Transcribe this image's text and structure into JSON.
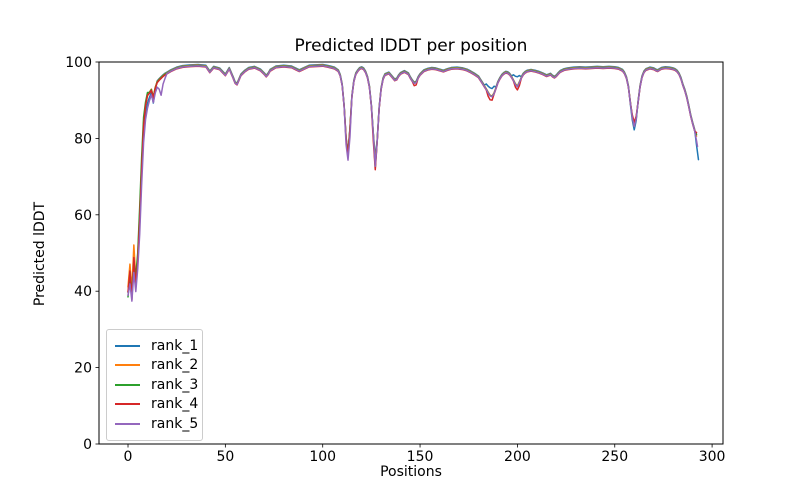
{
  "figure": {
    "title": "Predicted lDDT per position",
    "xlabel": "Positions",
    "ylabel": "Predicted lDDT"
  },
  "chart_data": {
    "type": "line",
    "title": "Predicted lDDT per position",
    "xlabel": "Positions",
    "ylabel": "Predicted lDDT",
    "xlim": [
      -14.9,
      305.6
    ],
    "ylim": [
      0,
      100
    ],
    "x_ticks": [
      0,
      50,
      100,
      150,
      200,
      250,
      300
    ],
    "y_ticks": [
      0,
      20,
      40,
      60,
      80,
      100
    ],
    "grid": false,
    "legend_position": "lower left",
    "line_width": 1.5,
    "axis_color": "#000000",
    "base_keypoints": [
      [
        0,
        39.5
      ],
      [
        1,
        44
      ],
      [
        2,
        38.5
      ],
      [
        3,
        47
      ],
      [
        4,
        41.5
      ],
      [
        5,
        48
      ],
      [
        6,
        58
      ],
      [
        7,
        72
      ],
      [
        8,
        83
      ],
      [
        9,
        88
      ],
      [
        10,
        90.5
      ],
      [
        11,
        92
      ],
      [
        12,
        92.8
      ],
      [
        13,
        90.8
      ],
      [
        14,
        93.3
      ],
      [
        15,
        94.8
      ],
      [
        16,
        95.4
      ],
      [
        17,
        95.9
      ],
      [
        18,
        96.4
      ],
      [
        19,
        96.8
      ],
      [
        20,
        97.1
      ],
      [
        22,
        97.7
      ],
      [
        25,
        98.4
      ],
      [
        28,
        98.8
      ],
      [
        32,
        99
      ],
      [
        36,
        99.1
      ],
      [
        40,
        98.9
      ],
      [
        42,
        97.4
      ],
      [
        44,
        98.6
      ],
      [
        47,
        98.2
      ],
      [
        50,
        96.6
      ],
      [
        52,
        98.3
      ],
      [
        54,
        95.9
      ],
      [
        55,
        94.6
      ],
      [
        56,
        94.2
      ],
      [
        57,
        95.4
      ],
      [
        58,
        96.6
      ],
      [
        60,
        97.6
      ],
      [
        62,
        98.3
      ],
      [
        65,
        98.6
      ],
      [
        68,
        97.9
      ],
      [
        70,
        96.9
      ],
      [
        71,
        96.3
      ],
      [
        72,
        96.9
      ],
      [
        73,
        97.8
      ],
      [
        76,
        98.7
      ],
      [
        80,
        98.9
      ],
      [
        84,
        98.7
      ],
      [
        86,
        98.2
      ],
      [
        88,
        97.7
      ],
      [
        90,
        98.2
      ],
      [
        93,
        98.9
      ],
      [
        96,
        99
      ],
      [
        100,
        99.1
      ],
      [
        103,
        98.8
      ],
      [
        106,
        98.4
      ],
      [
        108,
        97.7
      ],
      [
        109,
        96.5
      ],
      [
        110,
        94
      ],
      [
        111,
        88.5
      ],
      [
        112,
        80
      ],
      [
        113,
        75.8
      ],
      [
        114,
        82.5
      ],
      [
        115,
        91
      ],
      [
        116,
        95
      ],
      [
        117,
        96.9
      ],
      [
        118,
        97.7
      ],
      [
        119,
        98.3
      ],
      [
        120,
        98.5
      ],
      [
        121,
        98.2
      ],
      [
        122,
        97.4
      ],
      [
        123,
        96
      ],
      [
        124,
        93.5
      ],
      [
        125,
        88.5
      ],
      [
        126,
        81
      ],
      [
        127,
        73.2
      ],
      [
        128,
        79.5
      ],
      [
        129,
        88
      ],
      [
        130,
        93
      ],
      [
        131,
        95.6
      ],
      [
        132,
        96.7
      ],
      [
        134,
        97.1
      ],
      [
        136,
        95.9
      ],
      [
        137,
        95.3
      ],
      [
        138,
        95.5
      ],
      [
        139,
        96.4
      ],
      [
        140,
        97
      ],
      [
        142,
        97.5
      ],
      [
        144,
        96.9
      ],
      [
        145,
        95.9
      ],
      [
        146,
        95.1
      ],
      [
        147,
        94.5
      ],
      [
        148,
        94.7
      ],
      [
        149,
        95.9
      ],
      [
        150,
        96.7
      ],
      [
        152,
        97.7
      ],
      [
        154,
        98.1
      ],
      [
        156,
        98.3
      ],
      [
        158,
        98.2
      ],
      [
        160,
        97.9
      ],
      [
        162,
        97.6
      ],
      [
        164,
        98
      ],
      [
        166,
        98.3
      ],
      [
        169,
        98.4
      ],
      [
        172,
        98.2
      ],
      [
        174,
        97.9
      ],
      [
        176,
        97.4
      ],
      [
        178,
        96.8
      ],
      [
        180,
        96.1
      ],
      [
        181,
        95.3
      ],
      [
        182,
        94.5
      ],
      [
        183,
        93.7
      ],
      [
        184,
        92.9
      ],
      [
        185,
        92
      ],
      [
        186,
        91.2
      ],
      [
        187,
        91
      ],
      [
        188,
        91.8
      ],
      [
        189,
        93.2
      ],
      [
        190,
        94.7
      ],
      [
        191,
        95.7
      ],
      [
        192,
        96.5
      ],
      [
        193,
        97
      ],
      [
        194,
        97.3
      ],
      [
        195,
        97.2
      ],
      [
        196,
        96.8
      ],
      [
        197,
        96.1
      ],
      [
        198,
        95.2
      ],
      [
        199,
        94.2
      ],
      [
        200,
        93.6
      ],
      [
        201,
        94.7
      ],
      [
        202,
        95.9
      ],
      [
        203,
        96.8
      ],
      [
        204,
        97.3
      ],
      [
        205,
        97.6
      ],
      [
        207,
        97.8
      ],
      [
        209,
        97.6
      ],
      [
        211,
        97.3
      ],
      [
        213,
        96.9
      ],
      [
        215,
        96.4
      ],
      [
        216,
        96.6
      ],
      [
        217,
        96.8
      ],
      [
        218,
        96.3
      ],
      [
        219,
        96
      ],
      [
        220,
        96.4
      ],
      [
        221,
        97
      ],
      [
        222,
        97.5
      ],
      [
        224,
        98
      ],
      [
        226,
        98.2
      ],
      [
        229,
        98.4
      ],
      [
        232,
        98.5
      ],
      [
        235,
        98.4
      ],
      [
        238,
        98.5
      ],
      [
        241,
        98.6
      ],
      [
        244,
        98.5
      ],
      [
        247,
        98.6
      ],
      [
        250,
        98.5
      ],
      [
        252,
        98.3
      ],
      [
        254,
        97.8
      ],
      [
        255,
        97.1
      ],
      [
        256,
        95.9
      ],
      [
        257,
        93.6
      ],
      [
        258,
        89.6
      ],
      [
        259,
        85.6
      ],
      [
        260,
        83.2
      ],
      [
        261,
        85.2
      ],
      [
        262,
        89.6
      ],
      [
        263,
        93.6
      ],
      [
        264,
        96.1
      ],
      [
        265,
        97.4
      ],
      [
        266,
        98
      ],
      [
        268,
        98.4
      ],
      [
        270,
        98.2
      ],
      [
        271,
        97.9
      ],
      [
        272,
        97.7
      ],
      [
        273,
        98
      ],
      [
        274,
        98.3
      ],
      [
        276,
        98.5
      ],
      [
        278,
        98.4
      ],
      [
        280,
        98.2
      ],
      [
        281,
        98
      ],
      [
        282,
        97.6
      ],
      [
        283,
        96.9
      ],
      [
        284,
        95.7
      ],
      [
        285,
        94
      ],
      [
        286,
        92.6
      ],
      [
        287,
        90.8
      ],
      [
        288,
        88.5
      ],
      [
        289,
        86
      ],
      [
        290,
        84
      ],
      [
        291,
        82.2
      ]
    ],
    "series": [
      {
        "name": "rank_1",
        "color": "#1f77b4",
        "y_offset": 0.25,
        "overrides": [
          [
            0,
            39.5
          ],
          [
            1,
            43
          ],
          [
            2,
            38.5
          ],
          [
            3,
            46
          ],
          [
            4,
            41
          ],
          [
            5,
            47
          ],
          [
            6,
            57
          ],
          [
            7,
            70
          ],
          [
            8,
            81
          ],
          [
            9,
            86.5
          ],
          [
            10,
            89
          ],
          [
            11,
            90.5
          ],
          [
            12,
            91.8
          ],
          [
            13,
            89
          ],
          [
            14,
            92.5
          ],
          [
            113,
            76.2
          ],
          [
            127,
            74.8
          ],
          [
            184,
            94
          ],
          [
            185,
            93.4
          ],
          [
            186,
            93
          ],
          [
            187,
            92.8
          ],
          [
            188,
            93.4
          ],
          [
            198,
            96.4
          ],
          [
            199,
            96
          ],
          [
            200,
            95.9
          ],
          [
            201,
            96.2
          ],
          [
            258,
            88.8
          ],
          [
            259,
            84.6
          ],
          [
            260,
            82
          ],
          [
            261,
            84.4
          ],
          [
            292,
            78
          ],
          [
            293,
            74.2
          ]
        ]
      },
      {
        "name": "rank_2",
        "color": "#ff7f0e",
        "y_offset": 0.1,
        "overrides": [
          [
            0,
            41
          ],
          [
            1,
            47
          ],
          [
            2,
            40
          ],
          [
            3,
            52
          ],
          [
            4,
            43
          ],
          [
            5,
            49
          ],
          [
            6,
            60
          ],
          [
            7,
            73
          ],
          [
            8,
            84
          ],
          [
            9,
            88.5
          ],
          [
            10,
            91
          ],
          [
            127,
            73.6
          ],
          [
            292,
            80.5
          ]
        ]
      },
      {
        "name": "rank_3",
        "color": "#2ca02c",
        "y_offset": 0,
        "overrides": [
          [
            0,
            38.5
          ],
          [
            1,
            45
          ],
          [
            2,
            39.5
          ],
          [
            3,
            48
          ],
          [
            4,
            44
          ],
          [
            5,
            50
          ],
          [
            6,
            62
          ],
          [
            7,
            75
          ],
          [
            8,
            85.5
          ],
          [
            9,
            89.5
          ],
          [
            10,
            92
          ],
          [
            127,
            72.3
          ],
          [
            292,
            81
          ]
        ]
      },
      {
        "name": "rank_4",
        "color": "#d62728",
        "y_offset": -0.2,
        "overrides": [
          [
            0,
            40
          ],
          [
            1,
            45.5
          ],
          [
            2,
            38
          ],
          [
            3,
            49
          ],
          [
            4,
            42
          ],
          [
            5,
            48
          ],
          [
            6,
            59
          ],
          [
            7,
            72
          ],
          [
            8,
            83.5
          ],
          [
            9,
            88.8
          ],
          [
            10,
            91.5
          ],
          [
            113,
            75.5
          ],
          [
            126,
            79.5
          ],
          [
            127,
            72
          ],
          [
            147,
            94
          ],
          [
            148,
            94.2
          ],
          [
            185,
            91.2
          ],
          [
            186,
            90.3
          ],
          [
            187,
            90.2
          ],
          [
            199,
            93.6
          ],
          [
            200,
            92.9
          ],
          [
            201,
            94
          ],
          [
            259,
            86.4
          ],
          [
            260,
            84.4
          ],
          [
            261,
            86
          ],
          [
            292,
            81.7
          ]
        ]
      },
      {
        "name": "rank_5",
        "color": "#9467bd",
        "y_offset": -0.1,
        "overrides": [
          [
            0,
            39
          ],
          [
            1,
            42
          ],
          [
            2,
            37.5
          ],
          [
            3,
            45
          ],
          [
            4,
            40
          ],
          [
            5,
            46
          ],
          [
            6,
            55
          ],
          [
            7,
            68
          ],
          [
            8,
            79
          ],
          [
            9,
            85
          ],
          [
            10,
            88
          ],
          [
            11,
            90
          ],
          [
            12,
            91.5
          ],
          [
            13,
            89.5
          ],
          [
            14,
            92
          ],
          [
            15,
            93.5
          ],
          [
            16,
            93
          ],
          [
            17,
            91.4
          ],
          [
            18,
            94.3
          ],
          [
            19,
            95.8
          ],
          [
            112,
            78.5
          ],
          [
            113,
            74.4
          ],
          [
            114,
            80.5
          ],
          [
            127,
            72.8
          ],
          [
            292,
            79.5
          ],
          [
            292.5,
            78
          ]
        ]
      }
    ]
  }
}
